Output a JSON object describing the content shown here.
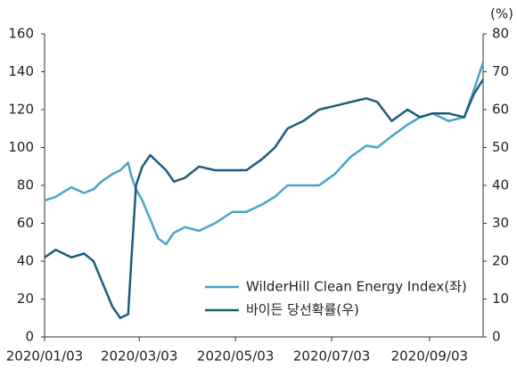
{
  "chart_data": {
    "type": "line",
    "y2_unit": "(%)",
    "x": [
      "2020-01-03",
      "2020-01-10",
      "2020-01-20",
      "2020-01-28",
      "2020-02-03",
      "2020-02-08",
      "2020-02-15",
      "2020-02-20",
      "2020-02-25",
      "2020-02-27",
      "2020-03-01",
      "2020-03-05",
      "2020-03-10",
      "2020-03-15",
      "2020-03-20",
      "2020-03-25",
      "2020-04-01",
      "2020-04-10",
      "2020-04-20",
      "2020-05-01",
      "2020-05-10",
      "2020-05-20",
      "2020-05-28",
      "2020-06-05",
      "2020-06-15",
      "2020-06-25",
      "2020-07-05",
      "2020-07-15",
      "2020-07-25",
      "2020-08-01",
      "2020-08-10",
      "2020-08-20",
      "2020-08-28",
      "2020-09-05",
      "2020-09-15",
      "2020-09-25",
      "2020-10-01",
      "2020-10-07"
    ],
    "xlim": [
      "2020-01-03",
      "2020-10-07"
    ],
    "xticks": [
      {
        "value": "2020-01-03",
        "label": "2020/01/03"
      },
      {
        "value": "2020-03-03",
        "label": "2020/03/03"
      },
      {
        "value": "2020-05-03",
        "label": "2020/05/03"
      },
      {
        "value": "2020-07-03",
        "label": "2020/07/03"
      },
      {
        "value": "2020-09-03",
        "label": "2020/09/03"
      }
    ],
    "ylim": [
      0,
      160
    ],
    "yticks": [
      0,
      20,
      40,
      60,
      80,
      100,
      120,
      140,
      160
    ],
    "y2lim": [
      0,
      80
    ],
    "y2ticks": [
      0,
      10,
      20,
      30,
      40,
      50,
      60,
      70,
      80
    ],
    "legend": "lower right",
    "series": [
      {
        "name": "WilderHill Clean Energy Index(좌)",
        "color": "#4aa3c8",
        "axis": "y",
        "values": [
          72,
          74,
          79,
          76,
          78,
          82,
          86,
          88,
          92,
          85,
          78,
          72,
          62,
          52,
          49,
          55,
          58,
          56,
          60,
          66,
          66,
          70,
          74,
          80,
          80,
          80,
          86,
          95,
          101,
          100,
          106,
          112,
          116,
          118,
          114,
          116,
          130,
          145
        ]
      },
      {
        "name": "바이든 당선확률(우)",
        "color": "#1f5c7a",
        "axis": "y2",
        "values": [
          21,
          23,
          21,
          22,
          20,
          15,
          8,
          5,
          6,
          20,
          40,
          45,
          48,
          46,
          44,
          41,
          42,
          45,
          44,
          44,
          44,
          47,
          50,
          55,
          57,
          60,
          61,
          62,
          63,
          62,
          57,
          60,
          58,
          59,
          59,
          58,
          64,
          68
        ]
      }
    ]
  }
}
